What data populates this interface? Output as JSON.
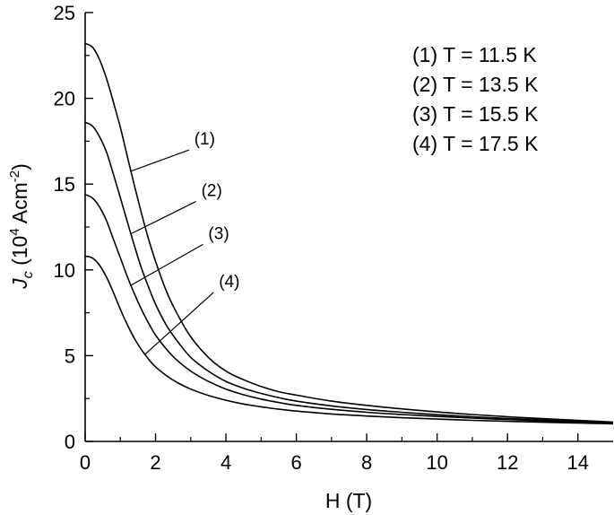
{
  "chart_data": {
    "type": "line",
    "xlabel": "H (T)",
    "ylabel": {
      "base": "J",
      "base_sub": "c",
      "open": " (10",
      "exp1": "4",
      "mid": " Acm",
      "exp2": "-2",
      "close": ")"
    },
    "xlim": [
      0,
      15
    ],
    "ylim": [
      0,
      25
    ],
    "xticks": [
      0,
      2,
      4,
      6,
      8,
      10,
      12,
      14
    ],
    "yticks": [
      0,
      5,
      10,
      15,
      20,
      25
    ],
    "grid": false,
    "legend_position": "top-right",
    "legend": [
      "(1) T = 11.5 K",
      "(2) T = 13.5 K",
      "(3) T = 15.5 K",
      "(4) T = 17.5 K"
    ],
    "series": [
      {
        "label": "(1)",
        "x": [
          0,
          0.2,
          0.4,
          0.6,
          0.8,
          1.0,
          1.2,
          1.4,
          1.6,
          1.8,
          2.0,
          2.3,
          2.6,
          3.0,
          3.5,
          4.0,
          4.5,
          5.0,
          5.5,
          6.0,
          7.0,
          8.0,
          9.0,
          10.0,
          11.0,
          12.0,
          13.0,
          14.0,
          15.0
        ],
        "y": [
          23.2,
          23.0,
          22.3,
          21.2,
          19.8,
          18.3,
          16.6,
          14.9,
          13.3,
          11.8,
          10.5,
          8.8,
          7.5,
          6.1,
          4.9,
          4.1,
          3.6,
          3.2,
          2.9,
          2.7,
          2.35,
          2.1,
          1.9,
          1.72,
          1.57,
          1.44,
          1.33,
          1.23,
          1.13
        ]
      },
      {
        "label": "(2)",
        "x": [
          0,
          0.2,
          0.4,
          0.6,
          0.8,
          1.0,
          1.2,
          1.4,
          1.6,
          1.8,
          2.0,
          2.3,
          2.6,
          3.0,
          3.5,
          4.0,
          4.5,
          5.0,
          5.5,
          6.0,
          7.0,
          8.0,
          9.0,
          10.0,
          11.0,
          12.0,
          13.0,
          14.0,
          15.0
        ],
        "y": [
          18.6,
          18.4,
          17.8,
          16.9,
          15.6,
          14.2,
          12.8,
          11.4,
          10.1,
          9.0,
          8.0,
          6.8,
          5.9,
          4.9,
          4.1,
          3.5,
          3.1,
          2.8,
          2.55,
          2.35,
          2.07,
          1.86,
          1.7,
          1.56,
          1.44,
          1.34,
          1.25,
          1.17,
          1.1
        ]
      },
      {
        "label": "(3)",
        "x": [
          0,
          0.2,
          0.4,
          0.6,
          0.8,
          1.0,
          1.2,
          1.4,
          1.6,
          1.8,
          2.0,
          2.3,
          2.6,
          3.0,
          3.5,
          4.0,
          4.5,
          5.0,
          5.5,
          6.0,
          7.0,
          8.0,
          9.0,
          10.0,
          11.0,
          12.0,
          13.0,
          14.0,
          15.0
        ],
        "y": [
          14.4,
          14.2,
          13.7,
          12.9,
          11.8,
          10.7,
          9.6,
          8.6,
          7.7,
          6.9,
          6.2,
          5.4,
          4.75,
          4.1,
          3.5,
          3.05,
          2.72,
          2.47,
          2.27,
          2.1,
          1.87,
          1.7,
          1.57,
          1.46,
          1.36,
          1.28,
          1.2,
          1.13,
          1.07
        ]
      },
      {
        "label": "(4)",
        "x": [
          0,
          0.2,
          0.4,
          0.6,
          0.8,
          1.0,
          1.2,
          1.4,
          1.6,
          1.8,
          2.0,
          2.3,
          2.6,
          3.0,
          3.5,
          4.0,
          4.5,
          5.0,
          5.5,
          6.0,
          7.0,
          8.0,
          9.0,
          10.0,
          11.0,
          12.0,
          13.0,
          14.0,
          15.0
        ],
        "y": [
          10.8,
          10.7,
          10.3,
          9.6,
          8.7,
          7.7,
          6.8,
          6.0,
          5.35,
          4.8,
          4.35,
          3.85,
          3.45,
          3.05,
          2.68,
          2.4,
          2.18,
          2.02,
          1.88,
          1.77,
          1.6,
          1.48,
          1.38,
          1.3,
          1.23,
          1.17,
          1.12,
          1.07,
          1.03
        ]
      }
    ],
    "annotations": [
      {
        "text": "(1)",
        "curve": 0,
        "at_x": 1.3,
        "label_at": [
          3.1,
          17.3
        ]
      },
      {
        "text": "(2)",
        "curve": 1,
        "at_x": 1.3,
        "label_at": [
          3.3,
          14.3
        ]
      },
      {
        "text": "(3)",
        "curve": 2,
        "at_x": 1.3,
        "label_at": [
          3.5,
          11.8
        ]
      },
      {
        "text": "(4)",
        "curve": 3,
        "at_x": 1.7,
        "label_at": [
          3.8,
          9.0
        ]
      }
    ]
  }
}
